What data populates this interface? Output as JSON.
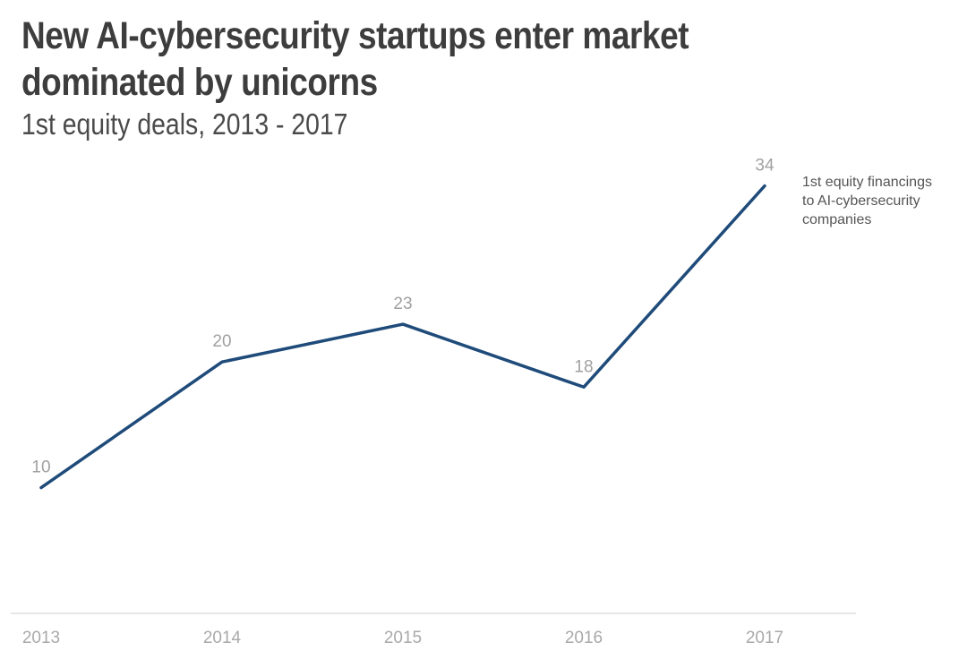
{
  "title": "New AI-cybersecurity startups enter market dominated by unicorns",
  "subtitle": "1st equity deals, 2013 - 2017",
  "colors": {
    "line": "#1f4b7a",
    "baseline": "#e6e6e6",
    "tick": "#a9a9a9"
  },
  "chart_data": {
    "type": "line",
    "title": "New AI-cybersecurity startups enter market dominated by unicorns",
    "subtitle": "1st equity deals, 2013 - 2017",
    "categories": [
      "2013",
      "2014",
      "2015",
      "2016",
      "2017"
    ],
    "series": [
      {
        "name": "1st equity financings to  AI-cybersecurity companies",
        "values": [
          10,
          20,
          23,
          18,
          34
        ]
      }
    ],
    "xlabel": "",
    "ylabel": "",
    "ylim": [
      0,
      34
    ],
    "grid": false,
    "legend": "right",
    "data_labels": true
  },
  "legend_lines": [
    "1st equity financings",
    "to  AI-cybersecurity",
    "companies"
  ]
}
